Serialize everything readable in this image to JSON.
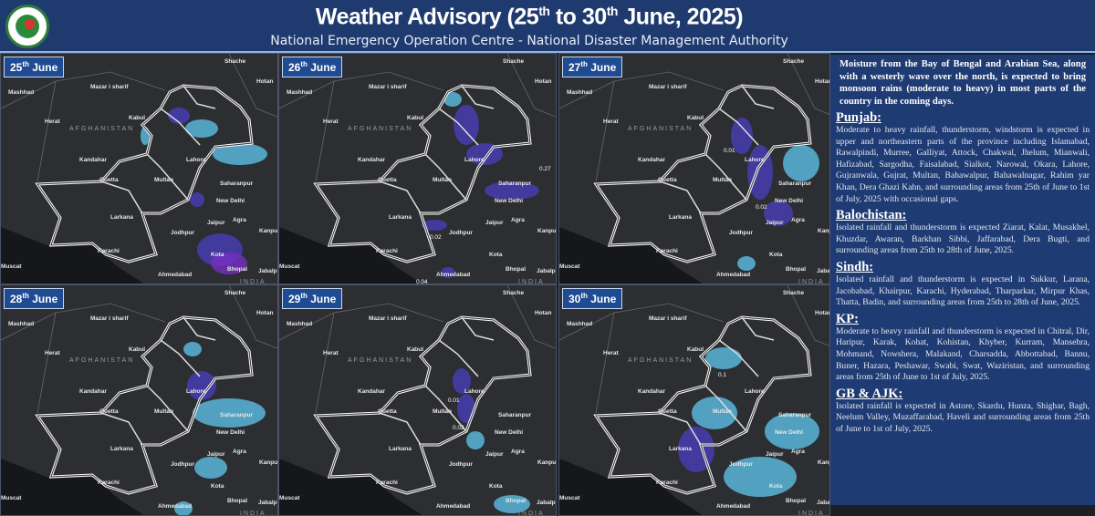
{
  "header": {
    "title_parts": [
      "Weather Advisory (25",
      "th",
      " to 30",
      "th",
      " June, 2025)"
    ],
    "subtitle": "National Emergency Operation Centre - National Disaster Management Authority",
    "logo": "NDMA emblem"
  },
  "map_labels": {
    "afghanistan": "AFGHANISTAN",
    "india": "INDIA",
    "cities": [
      "Mashhad",
      "Mazar i sharif",
      "Herat",
      "Kabul",
      "Kandahar",
      "Quetta",
      "Multan",
      "Lahore",
      "Saharanpur",
      "New Delhi",
      "Larkana",
      "Jodhpur",
      "Jaipur",
      "Agra",
      "Karachi",
      "Ahmedabad",
      "Muscat",
      "Hotan",
      "Shache",
      "Kanpur",
      "Bhopal",
      "Jabalpur",
      "Kota"
    ]
  },
  "maps": [
    {
      "day": "25",
      "sup": "th",
      "month": " June",
      "values": []
    },
    {
      "day": "26",
      "sup": "th",
      "month": " June",
      "values": [
        "0.27",
        "0.02",
        "0.04"
      ]
    },
    {
      "day": "27",
      "sup": "th",
      "month": " June",
      "values": [
        "0.01",
        "0.02"
      ]
    },
    {
      "day": "28",
      "sup": "th",
      "month": " June",
      "values": []
    },
    {
      "day": "29",
      "sup": "th",
      "month": " June",
      "values": [
        "0.01",
        "0.02"
      ]
    },
    {
      "day": "30",
      "sup": "th",
      "month": " June",
      "values": [
        "0.1"
      ]
    }
  ],
  "colors": {
    "header": "#1f3a6e",
    "panel": "#1f3b73",
    "rain_light": "#5fc8f0",
    "rain_heavy": "#4a3fc0",
    "rain_extreme": "#7a2fc8"
  },
  "advisory": {
    "intro": "Moisture from the Bay of Bengal and Arabian Sea, along with a westerly wave over the north, is expected to bring monsoon rains (moderate to heavy) in most parts of the country in the coming days.",
    "sections": [
      {
        "heading": "Punjab:",
        "text": "Moderate to heavy rainfall, thunderstorm, windstorm is expected in upper and northeastern parts of the province including Islamabad, Rawalpindi, Murree, Galliyat, Attock, Chakwal, Jhelum, Mianwali, Hafizabad, Sargodha, Faisalabad, Sialkot, Narowal, Okara, Lahore, Gujranwala, Gujrat, Multan, Bahawalpur, Bahawalnagar, Rahim yar Khan, Dera Ghazi Kahn, and surrounding areas from 25th of June to 1st of July, 2025 with occasional gaps."
      },
      {
        "heading": "Balochistan:",
        "text": "Isolated rainfall and thunderstorm is expected Ziarat, Kalat, Musakhel, Khuzdar, Awaran, Barkhan Sibbi, Jaffarabad, Dera Bugti, and surrounding areas from 25th to 28th of June, 2025."
      },
      {
        "heading": "Sindh:",
        "text": "Isolated rainfall and thunderstorm is expected in Sukkur, Larana, Jacobabad, Khairpur, Karachi, Hyderabad, Tharparkar, Mirpur Khas, Thatta, Badin, and surrounding areas from 25th to 28th of June, 2025."
      },
      {
        "heading": "KP:",
        "text": "Moderate to heavy rainfall and thunderstorm is expected in Chitral, Dir, Haripur, Karak, Kohat, Kohistan, Khyber, Kurram, Mansehra, Mohmand, Nowshera, Malakand, Charsadda, Abbottabad, Bannu, Buner, Hazara, Peshawar, Swabi, Swat, Waziristan, and surrounding areas from 25th of June to 1st of July, 2025."
      },
      {
        "heading": "GB & AJK:",
        "text": "Isolated rainfall is expected in Astore, Skardu, Hunza, Shighar, Bagh, Neelum Valley, Muzaffarabad, Haveli and surrounding areas from 25th of June to 1st of July, 2025."
      }
    ]
  }
}
